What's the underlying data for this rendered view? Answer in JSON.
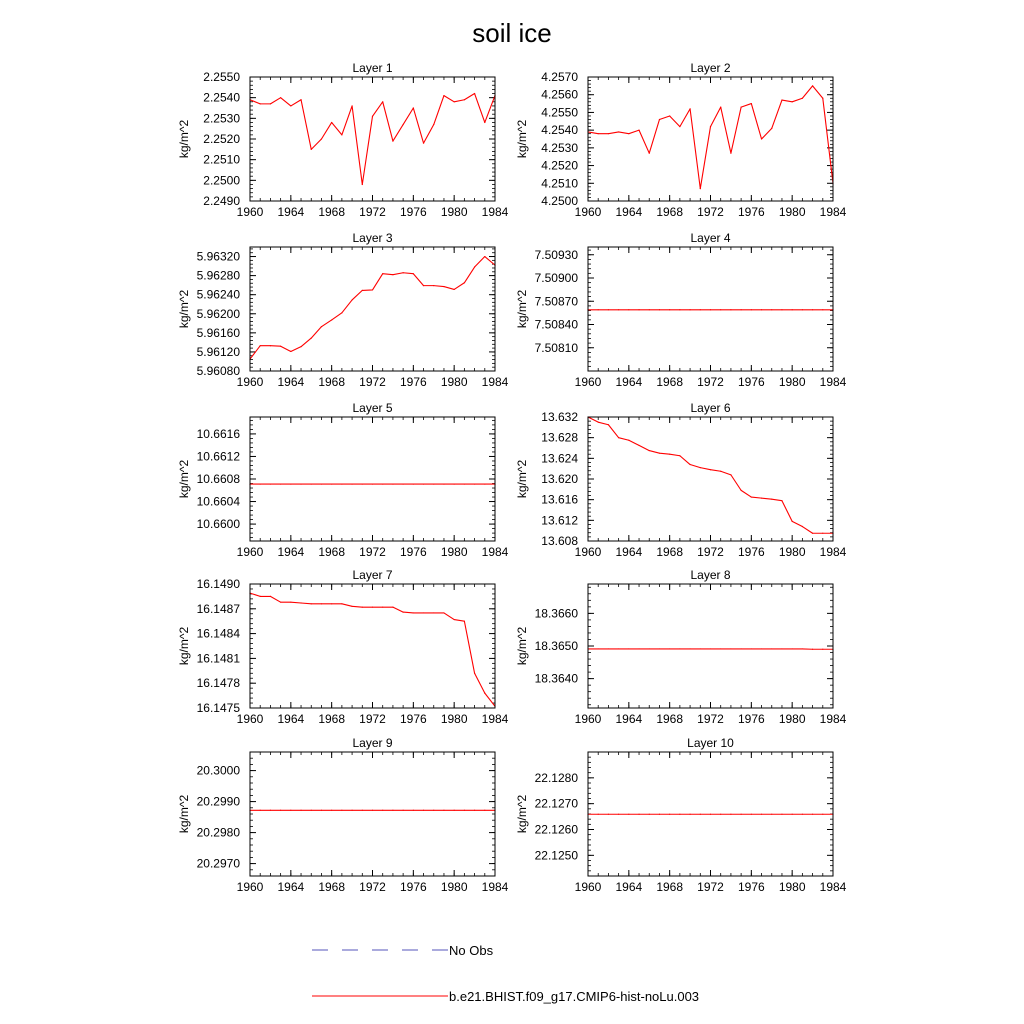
{
  "title": "soil ice",
  "legend": {
    "obs_label": "No Obs",
    "model_label": "b.e21.BHIST.f09_g17.CMIP6-hist-noLu.003",
    "obs_color": "#5555bb",
    "model_color": "#ff0000"
  },
  "chart_data": [
    {
      "type": "line",
      "title": "Layer 1",
      "ylabel": "kg/m^2",
      "xlim": [
        1960,
        1984
      ],
      "ylim": [
        2.249,
        2.255
      ],
      "xticks": [
        "1960",
        "1964",
        "1968",
        "1972",
        "1976",
        "1980",
        "1984"
      ],
      "yticks": [
        "2.2490",
        "2.2500",
        "2.2510",
        "2.2520",
        "2.2530",
        "2.2540",
        "2.2550"
      ],
      "x": [
        1960,
        1961,
        1962,
        1963,
        1964,
        1965,
        1966,
        1967,
        1968,
        1969,
        1970,
        1971,
        1972,
        1973,
        1974,
        1975,
        1976,
        1977,
        1978,
        1979,
        1980,
        1981,
        1982,
        1983,
        1984
      ],
      "series": [
        {
          "values": [
            2.2539,
            2.2537,
            2.2537,
            2.254,
            2.2536,
            2.2539,
            2.2515,
            2.252,
            2.2528,
            2.2522,
            2.2536,
            2.2498,
            2.2531,
            2.2538,
            2.2519,
            2.2527,
            2.2535,
            2.2518,
            2.2527,
            2.2541,
            2.2538,
            2.2539,
            2.2542,
            2.2528,
            2.2541
          ]
        }
      ]
    },
    {
      "type": "line",
      "title": "Layer 2",
      "ylabel": "kg/m^2",
      "xlim": [
        1960,
        1984
      ],
      "ylim": [
        4.25,
        4.257
      ],
      "xticks": [
        "1960",
        "1964",
        "1968",
        "1972",
        "1976",
        "1980",
        "1984"
      ],
      "yticks": [
        "4.2500",
        "4.2510",
        "4.2520",
        "4.2530",
        "4.2540",
        "4.2550",
        "4.2560",
        "4.2570"
      ],
      "x": [
        1960,
        1961,
        1962,
        1963,
        1964,
        1965,
        1966,
        1967,
        1968,
        1969,
        1970,
        1971,
        1972,
        1973,
        1974,
        1975,
        1976,
        1977,
        1978,
        1979,
        1980,
        1981,
        1982,
        1983,
        1984
      ],
      "series": [
        {
          "values": [
            4.2539,
            4.2538,
            4.2538,
            4.2539,
            4.2538,
            4.254,
            4.2527,
            4.2546,
            4.2548,
            4.2542,
            4.2552,
            4.2507,
            4.2542,
            4.2553,
            4.2527,
            4.2553,
            4.2555,
            4.2535,
            4.2541,
            4.2557,
            4.2556,
            4.2558,
            4.2565,
            4.2558,
            4.251
          ]
        }
      ]
    },
    {
      "type": "line",
      "title": "Layer 3",
      "ylabel": "kg/m^2",
      "xlim": [
        1960,
        1984
      ],
      "ylim": [
        5.9608,
        5.9634
      ],
      "xticks": [
        "1960",
        "1964",
        "1968",
        "1972",
        "1976",
        "1980",
        "1984"
      ],
      "yticks": [
        "5.96080",
        "5.96120",
        "5.96160",
        "5.96200",
        "5.96240",
        "5.96280",
        "5.96320"
      ],
      "x": [
        1960,
        1961,
        1962,
        1963,
        1964,
        1965,
        1966,
        1967,
        1968,
        1969,
        1970,
        1971,
        1972,
        1973,
        1974,
        1975,
        1976,
        1977,
        1978,
        1979,
        1980,
        1981,
        1982,
        1983,
        1984
      ],
      "series": [
        {
          "values": [
            5.96105,
            5.96133,
            5.96133,
            5.96132,
            5.96121,
            5.96131,
            5.96149,
            5.96173,
            5.96187,
            5.96202,
            5.96229,
            5.96249,
            5.9625,
            5.96284,
            5.96282,
            5.96286,
            5.96284,
            5.96259,
            5.96259,
            5.96257,
            5.96251,
            5.96265,
            5.96298,
            5.9632,
            5.96302
          ]
        }
      ]
    },
    {
      "type": "line",
      "title": "Layer 4",
      "ylabel": "kg/m^2",
      "xlim": [
        1960,
        1984
      ],
      "ylim": [
        7.5078,
        7.5094
      ],
      "xticks": [
        "1960",
        "1964",
        "1968",
        "1972",
        "1976",
        "1980",
        "1984"
      ],
      "yticks": [
        "7.50810",
        "7.50840",
        "7.50870",
        "7.50900",
        "7.50930"
      ],
      "x": [
        1960,
        1961,
        1962,
        1963,
        1964,
        1965,
        1966,
        1967,
        1968,
        1969,
        1970,
        1971,
        1972,
        1973,
        1974,
        1975,
        1976,
        1977,
        1978,
        1979,
        1980,
        1981,
        1982,
        1983,
        1984
      ],
      "series": [
        {
          "values": [
            7.50859,
            7.50859,
            7.50859,
            7.50859,
            7.50859,
            7.50859,
            7.50859,
            7.50859,
            7.50859,
            7.50859,
            7.50859,
            7.50859,
            7.50859,
            7.50859,
            7.50859,
            7.50859,
            7.50859,
            7.50859,
            7.50859,
            7.50859,
            7.50859,
            7.50859,
            7.50859,
            7.50859,
            7.50859
          ]
        }
      ]
    },
    {
      "type": "line",
      "title": "Layer 5",
      "ylabel": "kg/m^2",
      "xlim": [
        1960,
        1984
      ],
      "ylim": [
        10.6597,
        10.6619
      ],
      "xticks": [
        "1960",
        "1964",
        "1968",
        "1972",
        "1976",
        "1980",
        "1984"
      ],
      "yticks": [
        "10.6600",
        "10.6604",
        "10.6608",
        "10.6612",
        "10.6616"
      ],
      "x": [
        1960,
        1961,
        1962,
        1963,
        1964,
        1965,
        1966,
        1967,
        1968,
        1969,
        1970,
        1971,
        1972,
        1973,
        1974,
        1975,
        1976,
        1977,
        1978,
        1979,
        1980,
        1981,
        1982,
        1983,
        1984
      ],
      "series": [
        {
          "values": [
            10.66071,
            10.66071,
            10.66071,
            10.66071,
            10.66071,
            10.66071,
            10.66071,
            10.66071,
            10.66071,
            10.66071,
            10.66071,
            10.66071,
            10.66071,
            10.66071,
            10.66071,
            10.66071,
            10.66071,
            10.66071,
            10.66071,
            10.66071,
            10.66071,
            10.66071,
            10.66071,
            10.66071,
            10.66071
          ]
        }
      ]
    },
    {
      "type": "line",
      "title": "Layer 6",
      "ylabel": "kg/m^2",
      "xlim": [
        1960,
        1984
      ],
      "ylim": [
        13.608,
        13.632
      ],
      "xticks": [
        "1960",
        "1964",
        "1968",
        "1972",
        "1976",
        "1980",
        "1984"
      ],
      "yticks": [
        "13.608",
        "13.612",
        "13.616",
        "13.620",
        "13.624",
        "13.628",
        "13.632"
      ],
      "x": [
        1960,
        1961,
        1962,
        1963,
        1964,
        1965,
        1966,
        1967,
        1968,
        1969,
        1970,
        1971,
        1972,
        1973,
        1974,
        1975,
        1976,
        1977,
        1978,
        1979,
        1980,
        1981,
        1982,
        1983,
        1984
      ],
      "series": [
        {
          "values": [
            13.632,
            13.631,
            13.6305,
            13.628,
            13.6275,
            13.6265,
            13.6255,
            13.625,
            13.6248,
            13.6245,
            13.6228,
            13.6222,
            13.6218,
            13.6215,
            13.6208,
            13.6178,
            13.6165,
            13.6163,
            13.6161,
            13.6158,
            13.6118,
            13.6108,
            13.6095,
            13.6095,
            13.6095
          ]
        }
      ]
    },
    {
      "type": "line",
      "title": "Layer 7",
      "ylabel": "kg/m^2",
      "xlim": [
        1960,
        1984
      ],
      "ylim": [
        16.1475,
        16.149
      ],
      "xticks": [
        "1960",
        "1964",
        "1968",
        "1972",
        "1976",
        "1980",
        "1984"
      ],
      "yticks": [
        "16.1475",
        "16.1478",
        "16.1481",
        "16.1484",
        "16.1487",
        "16.1490"
      ],
      "x": [
        1960,
        1961,
        1962,
        1963,
        1964,
        1965,
        1966,
        1967,
        1968,
        1969,
        1970,
        1971,
        1972,
        1973,
        1974,
        1975,
        1976,
        1977,
        1978,
        1979,
        1980,
        1981,
        1982,
        1983,
        1984
      ],
      "series": [
        {
          "values": [
            16.14889,
            16.14885,
            16.14885,
            16.14878,
            16.14878,
            16.14877,
            16.14876,
            16.14876,
            16.14876,
            16.14876,
            16.14873,
            16.14872,
            16.14872,
            16.14872,
            16.14872,
            16.14866,
            16.14865,
            16.14865,
            16.14865,
            16.14865,
            16.14857,
            16.14855,
            16.14792,
            16.14768,
            16.14752
          ]
        }
      ]
    },
    {
      "type": "line",
      "title": "Layer 8",
      "ylabel": "kg/m^2",
      "xlim": [
        1960,
        1984
      ],
      "ylim": [
        18.3631,
        18.3669
      ],
      "xticks": [
        "1960",
        "1964",
        "1968",
        "1972",
        "1976",
        "1980",
        "1984"
      ],
      "yticks": [
        "18.3640",
        "18.3650",
        "18.3660"
      ],
      "x": [
        1960,
        1961,
        1962,
        1963,
        1964,
        1965,
        1966,
        1967,
        1968,
        1969,
        1970,
        1971,
        1972,
        1973,
        1974,
        1975,
        1976,
        1977,
        1978,
        1979,
        1980,
        1981,
        1982,
        1983,
        1984
      ],
      "series": [
        {
          "values": [
            18.36491,
            18.36491,
            18.36491,
            18.36491,
            18.36491,
            18.36491,
            18.36491,
            18.36491,
            18.36491,
            18.36491,
            18.36491,
            18.36491,
            18.36491,
            18.36491,
            18.36491,
            18.36491,
            18.36491,
            18.36491,
            18.36491,
            18.36491,
            18.36491,
            18.36491,
            18.3649,
            18.3649,
            18.3649
          ]
        }
      ]
    },
    {
      "type": "line",
      "title": "Layer 9",
      "ylabel": "kg/m^2",
      "xlim": [
        1960,
        1984
      ],
      "ylim": [
        20.2966,
        20.3006
      ],
      "xticks": [
        "1960",
        "1964",
        "1968",
        "1972",
        "1976",
        "1980",
        "1984"
      ],
      "yticks": [
        "20.2970",
        "20.2980",
        "20.2990",
        "20.3000"
      ],
      "x": [
        1960,
        1961,
        1962,
        1963,
        1964,
        1965,
        1966,
        1967,
        1968,
        1969,
        1970,
        1971,
        1972,
        1973,
        1974,
        1975,
        1976,
        1977,
        1978,
        1979,
        1980,
        1981,
        1982,
        1983,
        1984
      ],
      "series": [
        {
          "values": [
            20.29872,
            20.29872,
            20.29872,
            20.29872,
            20.29872,
            20.29872,
            20.29872,
            20.29872,
            20.29872,
            20.29872,
            20.29872,
            20.29872,
            20.29872,
            20.29872,
            20.29872,
            20.29872,
            20.29872,
            20.29872,
            20.29872,
            20.29872,
            20.29872,
            20.29872,
            20.29872,
            20.29872,
            20.29872
          ]
        }
      ]
    },
    {
      "type": "line",
      "title": "Layer 10",
      "ylabel": "kg/m^2",
      "xlim": [
        1960,
        1984
      ],
      "ylim": [
        22.1242,
        22.129
      ],
      "xticks": [
        "1960",
        "1964",
        "1968",
        "1972",
        "1976",
        "1980",
        "1984"
      ],
      "yticks": [
        "22.1250",
        "22.1260",
        "22.1270",
        "22.1280"
      ],
      "x": [
        1960,
        1961,
        1962,
        1963,
        1964,
        1965,
        1966,
        1967,
        1968,
        1969,
        1970,
        1971,
        1972,
        1973,
        1974,
        1975,
        1976,
        1977,
        1978,
        1979,
        1980,
        1981,
        1982,
        1983,
        1984
      ],
      "series": [
        {
          "values": [
            22.12659,
            22.12659,
            22.12659,
            22.12659,
            22.12659,
            22.12659,
            22.12659,
            22.12659,
            22.12659,
            22.12659,
            22.12659,
            22.12659,
            22.12659,
            22.12659,
            22.12659,
            22.12659,
            22.12659,
            22.12659,
            22.12659,
            22.12659,
            22.12659,
            22.12659,
            22.12659,
            22.12659,
            22.12659
          ]
        }
      ]
    }
  ]
}
